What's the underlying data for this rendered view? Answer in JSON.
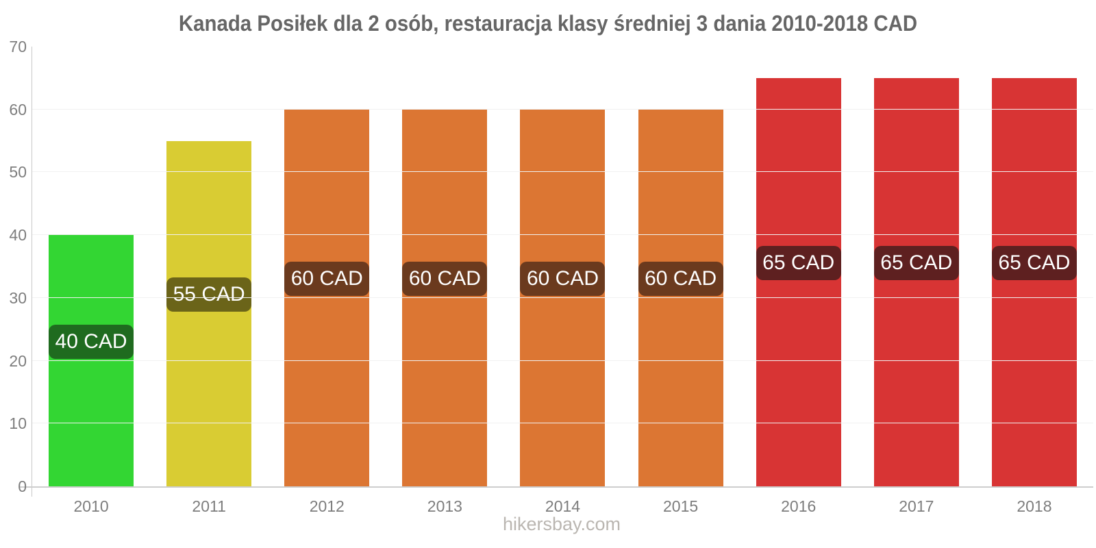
{
  "chart_data": {
    "type": "bar",
    "title": "Kanada Posiłek dla 2 osób, restauracja klasy średniej 3 dania 2010-2018 CAD",
    "unit": "CAD",
    "categories": [
      "2010",
      "2011",
      "2012",
      "2013",
      "2014",
      "2015",
      "2016",
      "2017",
      "2018"
    ],
    "values": [
      40,
      55,
      60,
      60,
      60,
      60,
      65,
      65,
      65
    ],
    "value_labels": [
      "40 CAD",
      "55 CAD",
      "60 CAD",
      "60 CAD",
      "60 CAD",
      "60 CAD",
      "65 CAD",
      "65 CAD",
      "65 CAD"
    ],
    "bar_colors": [
      "#33d633",
      "#d9cc33",
      "#dc7633",
      "#dc7633",
      "#dc7633",
      "#dc7633",
      "#d83434",
      "#d83434",
      "#d83434"
    ],
    "value_label_bg_colors": [
      "#1f6b1f",
      "#6b6419",
      "#6b3a1e",
      "#6b3a1e",
      "#6b3a1e",
      "#6b3a1e",
      "#5e2020",
      "#5e2020",
      "#5e2020"
    ],
    "ylim": [
      0,
      70
    ],
    "yticks": [
      0,
      10,
      20,
      30,
      40,
      50,
      60,
      70
    ],
    "grid": "horizontal",
    "legend": "none",
    "xlabel": "",
    "ylabel": ""
  },
  "style": {
    "title_color": "#666666",
    "axis_color": "#c8c8c8",
    "tick_label_color": "#7d7d7d",
    "gridline_color": "#f1f1f1",
    "value_text_color": "#ffffff",
    "watermark_color": "#bab6b1",
    "background": "#ffffff"
  },
  "footer": {
    "watermark": "hikersbay.com"
  }
}
